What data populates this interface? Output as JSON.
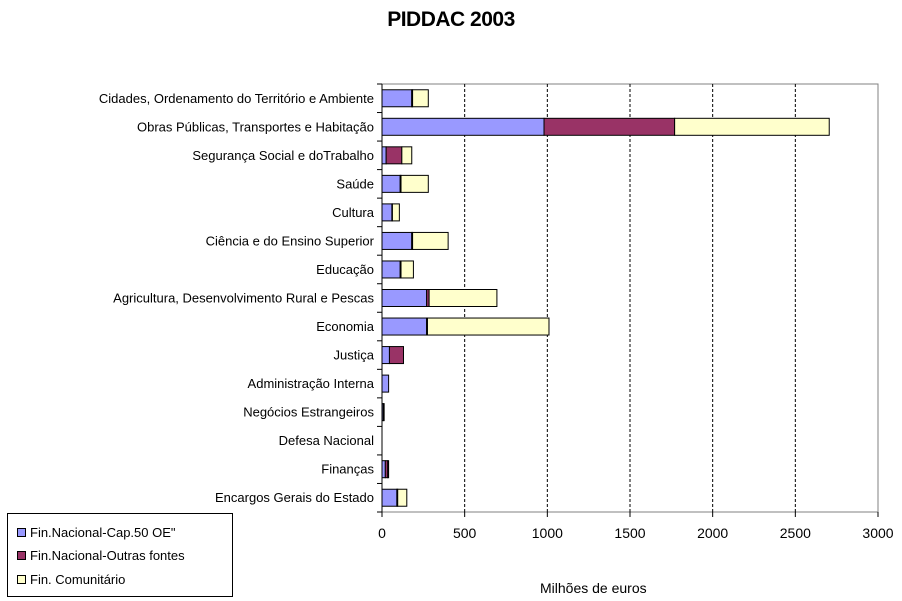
{
  "chart_data": {
    "type": "bar",
    "orientation": "horizontal",
    "stacked": true,
    "title": "PIDDAC 2003",
    "xlabel": "Milhões de euros",
    "ylabel": "",
    "xlim": [
      0,
      3000
    ],
    "xticks": [
      "0",
      "500",
      "1000",
      "1500",
      "2000",
      "2500",
      "3000"
    ],
    "grid": "vertical dashed",
    "legend_position": "bottom-left",
    "categories": [
      "Cidades, Ordenamento do Território e Ambiente",
      "Obras Públicas, Transportes e Habitação",
      "Segurança Social e doTrabalho",
      "Saúde",
      "Cultura",
      "Ciência e do Ensino Superior",
      "Educação",
      "Agricultura, Desenvolvimento Rural e Pescas",
      "Economia",
      "Justiça",
      "Administração Interna",
      "Negócios Estrangeiros",
      "Defesa Nacional",
      "Finanças",
      "Encargos Gerais do Estado"
    ],
    "series": [
      {
        "name": "Fin.Nacional-Cap.50 OE\"",
        "color": "#9999ff",
        "values": [
          180,
          980,
          25,
          110,
          60,
          180,
          110,
          270,
          270,
          45,
          40,
          8,
          0,
          20,
          90
        ]
      },
      {
        "name": "Fin.Nacional-Outras fontes",
        "color": "#993366",
        "values": [
          5,
          790,
          95,
          5,
          3,
          5,
          5,
          15,
          5,
          85,
          0,
          5,
          0,
          15,
          5
        ]
      },
      {
        "name": "Fin. Comunitário",
        "color": "#ffffcc",
        "values": [
          95,
          935,
          60,
          165,
          42,
          215,
          75,
          410,
          735,
          0,
          0,
          0,
          0,
          5,
          55
        ]
      }
    ]
  }
}
